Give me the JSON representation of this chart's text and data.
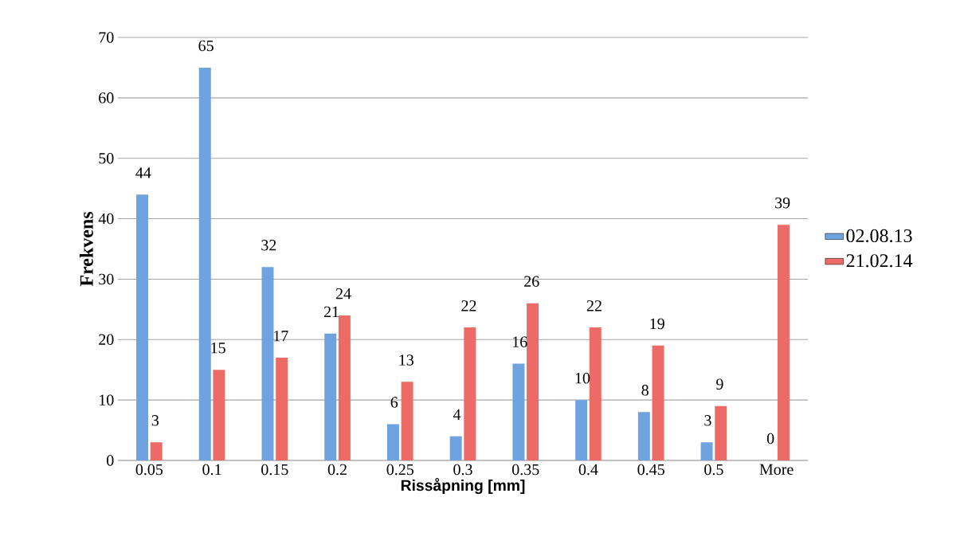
{
  "chart_data": {
    "type": "bar",
    "xlabel": "Rissåpning [mm]",
    "ylabel": "Frekvens",
    "categories": [
      "0.05",
      "0.1",
      "0.15",
      "0.2",
      "0.25",
      "0.3",
      "0.35",
      "0.4",
      "0.45",
      "0.5",
      "More"
    ],
    "series": [
      {
        "name": "02.08.13",
        "color": "#6fa3e0",
        "values": [
          44,
          65,
          32,
          21,
          6,
          4,
          16,
          10,
          8,
          3,
          0
        ]
      },
      {
        "name": "21.02.14",
        "color": "#ec6b67",
        "values": [
          3,
          15,
          17,
          24,
          13,
          22,
          26,
          22,
          19,
          9,
          39
        ]
      }
    ],
    "ylim": [
      0,
      70
    ],
    "yticks": [
      0,
      10,
      20,
      30,
      40,
      50,
      60,
      70
    ],
    "grid": "y",
    "legend": "right",
    "data_labels": true
  }
}
